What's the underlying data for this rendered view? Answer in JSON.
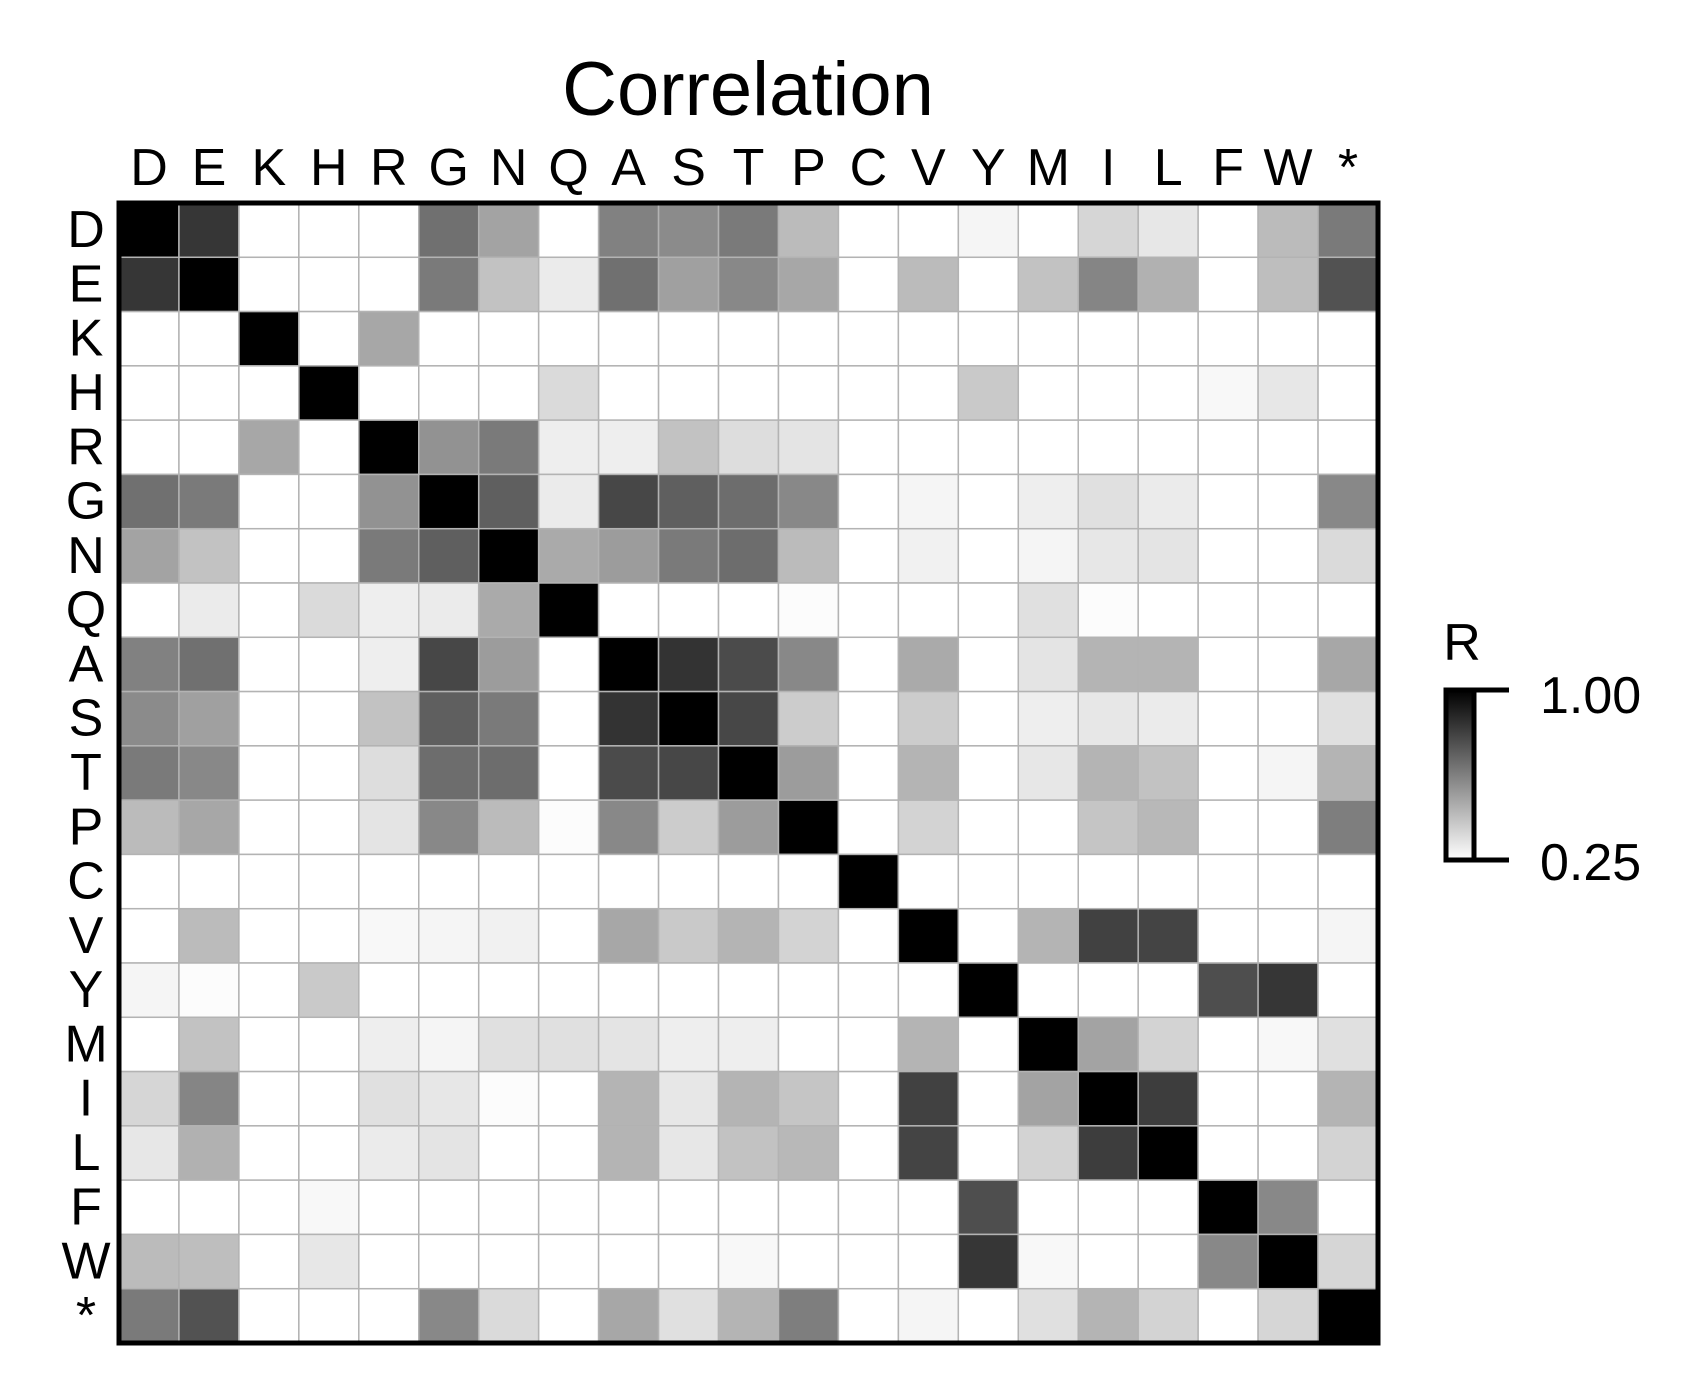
{
  "chart_data": {
    "type": "heatmap",
    "title": "Correlation",
    "x_labels": [
      "D",
      "E",
      "K",
      "H",
      "R",
      "G",
      "N",
      "Q",
      "A",
      "S",
      "T",
      "P",
      "C",
      "V",
      "Y",
      "M",
      "I",
      "L",
      "F",
      "W",
      "*"
    ],
    "y_labels": [
      "D",
      "E",
      "K",
      "H",
      "R",
      "G",
      "N",
      "Q",
      "A",
      "S",
      "T",
      "P",
      "C",
      "V",
      "Y",
      "M",
      "I",
      "L",
      "F",
      "W",
      "*"
    ],
    "colorbar": {
      "label": "R",
      "max_label": "1.00",
      "min_label": "0.25",
      "max": 1.0,
      "min": 0.25,
      "low_color": "#ffffff",
      "high_color": "#000000"
    },
    "values": [
      [
        1.0,
        0.84,
        0.25,
        0.25,
        0.25,
        0.67,
        0.52,
        0.25,
        0.62,
        0.59,
        0.64,
        0.45,
        0.25,
        0.25,
        0.28,
        0.25,
        0.37,
        0.32,
        0.25,
        0.45,
        0.64
      ],
      [
        0.84,
        1.0,
        0.25,
        0.25,
        0.25,
        0.64,
        0.43,
        0.31,
        0.67,
        0.53,
        0.6,
        0.51,
        0.25,
        0.45,
        0.25,
        0.43,
        0.61,
        0.48,
        0.25,
        0.44,
        0.76
      ],
      [
        0.25,
        0.25,
        1.0,
        0.25,
        0.51,
        0.25,
        0.25,
        0.25,
        0.25,
        0.25,
        0.25,
        0.25,
        0.25,
        0.25,
        0.25,
        0.25,
        0.25,
        0.25,
        0.25,
        0.25,
        0.25
      ],
      [
        0.25,
        0.25,
        0.25,
        1.0,
        0.25,
        0.25,
        0.25,
        0.36,
        0.25,
        0.25,
        0.25,
        0.25,
        0.25,
        0.25,
        0.41,
        0.25,
        0.25,
        0.25,
        0.27,
        0.32,
        0.25
      ],
      [
        0.25,
        0.25,
        0.51,
        0.25,
        1.0,
        0.57,
        0.64,
        0.3,
        0.3,
        0.43,
        0.35,
        0.33,
        0.25,
        0.25,
        0.25,
        0.25,
        0.25,
        0.25,
        0.25,
        0.25,
        0.25
      ],
      [
        0.67,
        0.64,
        0.25,
        0.25,
        0.57,
        1.0,
        0.72,
        0.31,
        0.79,
        0.72,
        0.68,
        0.6,
        0.25,
        0.28,
        0.25,
        0.3,
        0.34,
        0.31,
        0.25,
        0.25,
        0.6
      ],
      [
        0.52,
        0.43,
        0.25,
        0.25,
        0.64,
        0.72,
        1.0,
        0.5,
        0.54,
        0.64,
        0.68,
        0.45,
        0.25,
        0.29,
        0.25,
        0.28,
        0.32,
        0.33,
        0.25,
        0.25,
        0.36
      ],
      [
        0.25,
        0.31,
        0.25,
        0.36,
        0.3,
        0.31,
        0.5,
        1.0,
        0.25,
        0.25,
        0.25,
        0.26,
        0.25,
        0.25,
        0.25,
        0.34,
        0.26,
        0.25,
        0.25,
        0.25,
        0.25
      ],
      [
        0.62,
        0.67,
        0.25,
        0.25,
        0.3,
        0.79,
        0.54,
        0.25,
        1.0,
        0.85,
        0.78,
        0.6,
        0.25,
        0.5,
        0.25,
        0.33,
        0.47,
        0.47,
        0.25,
        0.25,
        0.51
      ],
      [
        0.59,
        0.53,
        0.25,
        0.25,
        0.43,
        0.72,
        0.64,
        0.25,
        0.85,
        1.0,
        0.79,
        0.4,
        0.25,
        0.4,
        0.25,
        0.3,
        0.32,
        0.31,
        0.25,
        0.25,
        0.34
      ],
      [
        0.64,
        0.6,
        0.25,
        0.25,
        0.35,
        0.68,
        0.68,
        0.25,
        0.78,
        0.79,
        1.0,
        0.54,
        0.25,
        0.47,
        0.25,
        0.32,
        0.47,
        0.43,
        0.25,
        0.28,
        0.47
      ],
      [
        0.45,
        0.51,
        0.25,
        0.25,
        0.33,
        0.6,
        0.45,
        0.26,
        0.6,
        0.4,
        0.54,
        1.0,
        0.25,
        0.38,
        0.25,
        0.25,
        0.42,
        0.46,
        0.25,
        0.25,
        0.63
      ],
      [
        0.25,
        0.25,
        0.25,
        0.25,
        0.25,
        0.25,
        0.25,
        0.25,
        0.25,
        0.25,
        0.25,
        0.25,
        1.0,
        0.25,
        0.25,
        0.25,
        0.25,
        0.25,
        0.25,
        0.25,
        0.25
      ],
      [
        0.25,
        0.45,
        0.25,
        0.25,
        0.27,
        0.28,
        0.29,
        0.25,
        0.51,
        0.41,
        0.47,
        0.38,
        0.25,
        1.0,
        0.25,
        0.47,
        0.81,
        0.8,
        0.25,
        0.25,
        0.28
      ],
      [
        0.28,
        0.26,
        0.25,
        0.41,
        0.25,
        0.25,
        0.25,
        0.25,
        0.25,
        0.25,
        0.25,
        0.25,
        0.25,
        0.25,
        1.0,
        0.25,
        0.25,
        0.25,
        0.77,
        0.84,
        0.25
      ],
      [
        0.25,
        0.43,
        0.25,
        0.25,
        0.3,
        0.28,
        0.34,
        0.34,
        0.33,
        0.3,
        0.3,
        0.25,
        0.25,
        0.47,
        0.25,
        1.0,
        0.52,
        0.38,
        0.25,
        0.27,
        0.34
      ],
      [
        0.37,
        0.61,
        0.25,
        0.25,
        0.34,
        0.32,
        0.26,
        0.25,
        0.47,
        0.32,
        0.47,
        0.42,
        0.25,
        0.81,
        0.25,
        0.52,
        1.0,
        0.82,
        0.25,
        0.25,
        0.47
      ],
      [
        0.32,
        0.48,
        0.25,
        0.25,
        0.31,
        0.33,
        0.25,
        0.25,
        0.47,
        0.32,
        0.43,
        0.46,
        0.25,
        0.8,
        0.25,
        0.38,
        0.82,
        1.0,
        0.25,
        0.25,
        0.38
      ],
      [
        0.25,
        0.25,
        0.25,
        0.27,
        0.25,
        0.25,
        0.25,
        0.25,
        0.25,
        0.25,
        0.25,
        0.25,
        0.25,
        0.25,
        0.77,
        0.25,
        0.25,
        0.25,
        1.0,
        0.6,
        0.25
      ],
      [
        0.45,
        0.44,
        0.25,
        0.32,
        0.25,
        0.25,
        0.25,
        0.25,
        0.25,
        0.25,
        0.27,
        0.25,
        0.25,
        0.25,
        0.84,
        0.27,
        0.25,
        0.25,
        0.6,
        1.0,
        0.37
      ],
      [
        0.64,
        0.76,
        0.25,
        0.25,
        0.25,
        0.6,
        0.36,
        0.25,
        0.51,
        0.34,
        0.47,
        0.63,
        0.25,
        0.28,
        0.25,
        0.34,
        0.47,
        0.38,
        0.25,
        0.37,
        1.0
      ]
    ]
  }
}
